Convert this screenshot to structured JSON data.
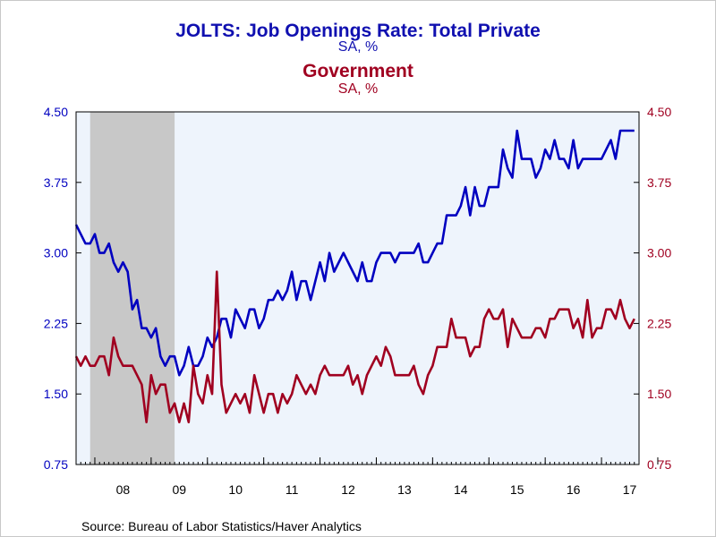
{
  "chart_data": {
    "type": "line",
    "title": "JOLTS: Job Openings Rate: Total Private",
    "title_units": "SA, %",
    "subtitle": "Government",
    "subtitle_units": "SA, %",
    "source": "Source:  Bureau of Labor Statistics/Haver Analytics",
    "x_start": "2007-09",
    "x_end": "2017-09",
    "x_ticks": [
      {
        "label": "08",
        "year": 2008
      },
      {
        "label": "09",
        "year": 2009
      },
      {
        "label": "10",
        "year": 2010
      },
      {
        "label": "11",
        "year": 2011
      },
      {
        "label": "12",
        "year": 2012
      },
      {
        "label": "13",
        "year": 2013
      },
      {
        "label": "14",
        "year": 2014
      },
      {
        "label": "15",
        "year": 2015
      },
      {
        "label": "16",
        "year": 2016
      },
      {
        "label": "17",
        "year": 2017
      }
    ],
    "ylim": [
      0.75,
      4.5
    ],
    "yticks": [
      "0.75",
      "1.50",
      "2.25",
      "3.00",
      "3.75",
      "4.50"
    ],
    "recession": {
      "start": "2007-12",
      "end": "2009-06",
      "color": "#c8c8c8"
    },
    "background_color": "#eef4fc",
    "series": [
      {
        "name": "JOLTS: Job Openings Rate: Total Private",
        "axis": "left",
        "color": "#0000c0",
        "values": [
          3.3,
          3.2,
          3.1,
          3.1,
          3.2,
          3.0,
          3.0,
          3.1,
          2.9,
          2.8,
          2.9,
          2.8,
          2.4,
          2.5,
          2.2,
          2.2,
          2.1,
          2.2,
          1.9,
          1.8,
          1.9,
          1.9,
          1.7,
          1.8,
          2.0,
          1.8,
          1.8,
          1.9,
          2.1,
          2.0,
          2.1,
          2.3,
          2.3,
          2.1,
          2.4,
          2.3,
          2.2,
          2.4,
          2.4,
          2.2,
          2.3,
          2.5,
          2.5,
          2.6,
          2.5,
          2.6,
          2.8,
          2.5,
          2.7,
          2.7,
          2.5,
          2.7,
          2.9,
          2.7,
          3.0,
          2.8,
          2.9,
          3.0,
          2.9,
          2.8,
          2.7,
          2.9,
          2.7,
          2.7,
          2.9,
          3.0,
          3.0,
          3.0,
          2.9,
          3.0,
          3.0,
          3.0,
          3.0,
          3.1,
          2.9,
          2.9,
          3.0,
          3.1,
          3.1,
          3.4,
          3.4,
          3.4,
          3.5,
          3.7,
          3.4,
          3.7,
          3.5,
          3.5,
          3.7,
          3.7,
          3.7,
          4.1,
          3.9,
          3.8,
          4.3,
          4.0,
          4.0,
          4.0,
          3.8,
          3.9,
          4.1,
          4.0,
          4.2,
          4.0,
          4.0,
          3.9,
          4.2,
          3.9,
          4.0,
          4.0,
          4.0,
          4.0,
          4.0,
          4.1,
          4.2,
          4.0,
          4.3,
          4.3,
          4.3,
          4.3
        ]
      },
      {
        "name": "Government",
        "axis": "right",
        "color": "#a00020",
        "values": [
          1.9,
          1.8,
          1.9,
          1.8,
          1.8,
          1.9,
          1.9,
          1.7,
          2.1,
          1.9,
          1.8,
          1.8,
          1.8,
          1.7,
          1.6,
          1.2,
          1.7,
          1.5,
          1.6,
          1.6,
          1.3,
          1.4,
          1.2,
          1.4,
          1.2,
          1.8,
          1.5,
          1.4,
          1.7,
          1.5,
          2.8,
          1.6,
          1.3,
          1.4,
          1.5,
          1.4,
          1.5,
          1.3,
          1.7,
          1.5,
          1.3,
          1.5,
          1.5,
          1.3,
          1.5,
          1.4,
          1.5,
          1.7,
          1.6,
          1.5,
          1.6,
          1.5,
          1.7,
          1.8,
          1.7,
          1.7,
          1.7,
          1.7,
          1.8,
          1.6,
          1.7,
          1.5,
          1.7,
          1.8,
          1.9,
          1.8,
          2.0,
          1.9,
          1.7,
          1.7,
          1.7,
          1.7,
          1.8,
          1.6,
          1.5,
          1.7,
          1.8,
          2.0,
          2.0,
          2.0,
          2.3,
          2.1,
          2.1,
          2.1,
          1.9,
          2.0,
          2.0,
          2.3,
          2.4,
          2.3,
          2.3,
          2.4,
          2.0,
          2.3,
          2.2,
          2.1,
          2.1,
          2.1,
          2.2,
          2.2,
          2.1,
          2.3,
          2.3,
          2.4,
          2.4,
          2.4,
          2.2,
          2.3,
          2.1,
          2.5,
          2.1,
          2.2,
          2.2,
          2.4,
          2.4,
          2.3,
          2.5,
          2.3,
          2.2,
          2.3
        ]
      }
    ]
  }
}
